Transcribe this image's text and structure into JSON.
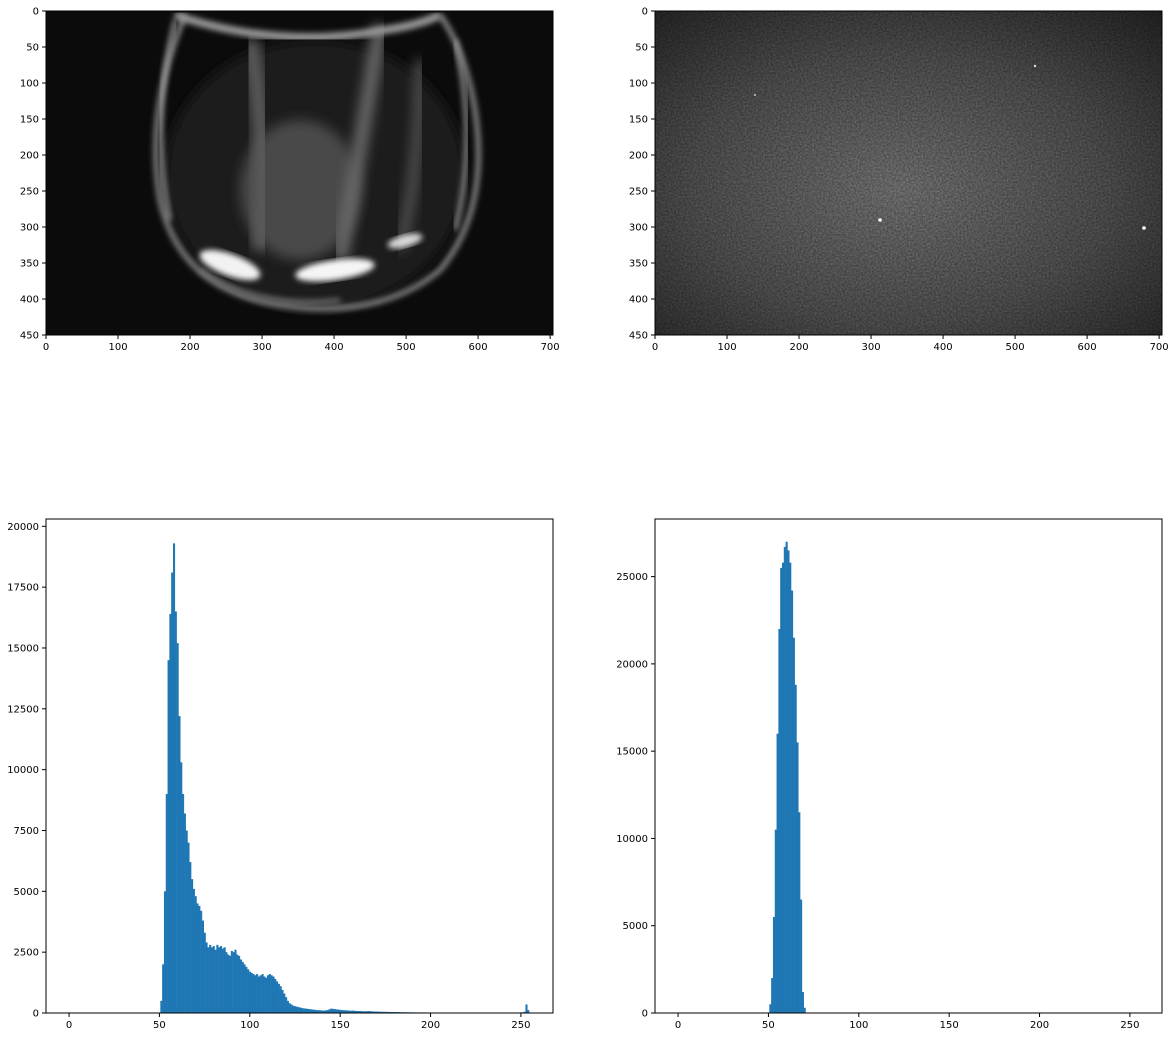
{
  "figure": {
    "background": "#ffffff",
    "bar_color": "#1f77b4"
  },
  "chart_data": [
    {
      "type": "image",
      "panel": "top-left",
      "content": "grayscale photo of a glass vessel on dark background",
      "xlim": [
        0,
        704
      ],
      "ylim": [
        450,
        0
      ],
      "xticks": [
        0,
        100,
        200,
        300,
        400,
        500,
        600,
        700
      ],
      "yticks": [
        0,
        50,
        100,
        150,
        200,
        250,
        300,
        350,
        400,
        450
      ]
    },
    {
      "type": "image",
      "panel": "top-right",
      "content": "grayscale noisy speckle texture, brighter in the center",
      "xlim": [
        0,
        704
      ],
      "ylim": [
        450,
        0
      ],
      "xticks": [
        0,
        100,
        200,
        300,
        400,
        500,
        600,
        700
      ],
      "yticks": [
        0,
        50,
        100,
        150,
        200,
        250,
        300,
        350,
        400,
        450
      ]
    },
    {
      "type": "bar",
      "panel": "bottom-left",
      "histogram": true,
      "xlim": [
        -12.75,
        267.75
      ],
      "ylim": [
        0,
        20300
      ],
      "xticks": [
        0,
        50,
        100,
        150,
        200,
        250
      ],
      "yticks": [
        0,
        2500,
        5000,
        7500,
        10000,
        12500,
        15000,
        17500,
        20000
      ],
      "bins": [
        [
          51,
          500
        ],
        [
          52,
          2000
        ],
        [
          53,
          5000
        ],
        [
          54,
          9000
        ],
        [
          55,
          14500
        ],
        [
          56,
          16400
        ],
        [
          57,
          18100
        ],
        [
          58,
          19300
        ],
        [
          59,
          16500
        ],
        [
          60,
          15200
        ],
        [
          61,
          12200
        ],
        [
          62,
          10300
        ],
        [
          63,
          9000
        ],
        [
          64,
          8200
        ],
        [
          65,
          7500
        ],
        [
          66,
          7000
        ],
        [
          67,
          6200
        ],
        [
          68,
          5500
        ],
        [
          69,
          5100
        ],
        [
          70,
          4800
        ],
        [
          71,
          4500
        ],
        [
          72,
          4400
        ],
        [
          73,
          4200
        ],
        [
          74,
          3800
        ],
        [
          75,
          3300
        ],
        [
          76,
          2900
        ],
        [
          77,
          2700
        ],
        [
          78,
          2800
        ],
        [
          79,
          2700
        ],
        [
          80,
          2750
        ],
        [
          81,
          2600
        ],
        [
          82,
          2800
        ],
        [
          83,
          2700
        ],
        [
          84,
          2750
        ],
        [
          85,
          2650
        ],
        [
          86,
          2700
        ],
        [
          87,
          2500
        ],
        [
          88,
          2400
        ],
        [
          89,
          2350
        ],
        [
          90,
          2550
        ],
        [
          91,
          2500
        ],
        [
          92,
          2600
        ],
        [
          93,
          2400
        ],
        [
          94,
          2350
        ],
        [
          95,
          2200
        ],
        [
          96,
          2100
        ],
        [
          97,
          2000
        ],
        [
          98,
          1900
        ],
        [
          99,
          1800
        ],
        [
          100,
          1700
        ],
        [
          101,
          1650
        ],
        [
          102,
          1600
        ],
        [
          103,
          1550
        ],
        [
          104,
          1600
        ],
        [
          105,
          1500
        ],
        [
          106,
          1550
        ],
        [
          107,
          1600
        ],
        [
          108,
          1500
        ],
        [
          109,
          1450
        ],
        [
          110,
          1550
        ],
        [
          111,
          1600
        ],
        [
          112,
          1550
        ],
        [
          113,
          1500
        ],
        [
          114,
          1400
        ],
        [
          115,
          1300
        ],
        [
          116,
          1200
        ],
        [
          117,
          1100
        ],
        [
          118,
          950
        ],
        [
          119,
          800
        ],
        [
          120,
          650
        ],
        [
          121,
          500
        ],
        [
          122,
          400
        ],
        [
          123,
          350
        ],
        [
          124,
          300
        ],
        [
          125,
          280
        ],
        [
          126,
          260
        ],
        [
          127,
          240
        ],
        [
          128,
          220
        ],
        [
          129,
          200
        ],
        [
          130,
          190
        ],
        [
          131,
          180
        ],
        [
          132,
          170
        ],
        [
          133,
          160
        ],
        [
          134,
          150
        ],
        [
          135,
          140
        ],
        [
          136,
          130
        ],
        [
          137,
          120
        ],
        [
          138,
          115
        ],
        [
          139,
          110
        ],
        [
          140,
          105
        ],
        [
          141,
          100
        ],
        [
          142,
          110
        ],
        [
          143,
          120
        ],
        [
          144,
          150
        ],
        [
          145,
          180
        ],
        [
          146,
          170
        ],
        [
          147,
          160
        ],
        [
          148,
          150
        ],
        [
          149,
          140
        ],
        [
          150,
          130
        ],
        [
          151,
          120
        ],
        [
          152,
          115
        ],
        [
          153,
          110
        ],
        [
          154,
          105
        ],
        [
          155,
          100
        ],
        [
          156,
          95
        ],
        [
          157,
          100
        ],
        [
          158,
          90
        ],
        [
          159,
          85
        ],
        [
          160,
          80
        ],
        [
          161,
          80
        ],
        [
          162,
          75
        ],
        [
          163,
          70
        ],
        [
          164,
          70
        ],
        [
          165,
          75
        ],
        [
          166,
          80
        ],
        [
          167,
          70
        ],
        [
          168,
          65
        ],
        [
          169,
          60
        ],
        [
          170,
          60
        ],
        [
          171,
          55
        ],
        [
          172,
          55
        ],
        [
          173,
          50
        ],
        [
          174,
          50
        ],
        [
          175,
          48
        ],
        [
          176,
          46
        ],
        [
          177,
          44
        ],
        [
          178,
          42
        ],
        [
          179,
          40
        ],
        [
          180,
          40
        ],
        [
          181,
          38
        ],
        [
          182,
          36
        ],
        [
          183,
          34
        ],
        [
          184,
          32
        ],
        [
          185,
          30
        ],
        [
          186,
          30
        ],
        [
          187,
          28
        ],
        [
          188,
          28
        ],
        [
          189,
          26
        ],
        [
          190,
          26
        ],
        [
          191,
          25
        ],
        [
          192,
          25
        ],
        [
          193,
          24
        ],
        [
          194,
          24
        ],
        [
          195,
          23
        ],
        [
          196,
          23
        ],
        [
          197,
          22
        ],
        [
          198,
          22
        ],
        [
          199,
          21
        ],
        [
          200,
          21
        ],
        [
          201,
          20
        ],
        [
          202,
          20
        ],
        [
          203,
          20
        ],
        [
          204,
          19
        ],
        [
          205,
          19
        ],
        [
          206,
          18
        ],
        [
          207,
          18
        ],
        [
          208,
          18
        ],
        [
          209,
          17
        ],
        [
          210,
          17
        ],
        [
          211,
          17
        ],
        [
          212,
          16
        ],
        [
          213,
          16
        ],
        [
          214,
          16
        ],
        [
          215,
          15
        ],
        [
          216,
          15
        ],
        [
          217,
          15
        ],
        [
          218,
          15
        ],
        [
          219,
          14
        ],
        [
          220,
          14
        ],
        [
          221,
          14
        ],
        [
          222,
          14
        ],
        [
          223,
          13
        ],
        [
          224,
          13
        ],
        [
          225,
          13
        ],
        [
          226,
          13
        ],
        [
          227,
          12
        ],
        [
          228,
          12
        ],
        [
          229,
          12
        ],
        [
          230,
          12
        ],
        [
          231,
          12
        ],
        [
          232,
          11
        ],
        [
          233,
          11
        ],
        [
          234,
          11
        ],
        [
          235,
          11
        ],
        [
          236,
          11
        ],
        [
          237,
          10
        ],
        [
          238,
          10
        ],
        [
          239,
          10
        ],
        [
          240,
          10
        ],
        [
          241,
          10
        ],
        [
          242,
          10
        ],
        [
          243,
          10
        ],
        [
          244,
          10
        ],
        [
          245,
          12
        ],
        [
          246,
          14
        ],
        [
          247,
          16
        ],
        [
          248,
          18
        ],
        [
          249,
          20
        ],
        [
          250,
          25
        ],
        [
          251,
          30
        ],
        [
          252,
          50
        ],
        [
          253,
          350
        ],
        [
          254,
          120
        ]
      ]
    },
    {
      "type": "bar",
      "panel": "bottom-right",
      "histogram": true,
      "xlim": [
        -12.75,
        267.75
      ],
      "ylim": [
        0,
        28300
      ],
      "xticks": [
        0,
        50,
        100,
        150,
        200,
        250
      ],
      "yticks": [
        0,
        5000,
        10000,
        15000,
        20000,
        25000
      ],
      "bins": [
        [
          51,
          500
        ],
        [
          52,
          2000
        ],
        [
          53,
          5500
        ],
        [
          54,
          10500
        ],
        [
          55,
          16000
        ],
        [
          56,
          22000
        ],
        [
          57,
          25500
        ],
        [
          58,
          25800
        ],
        [
          59,
          26700
        ],
        [
          60,
          27000
        ],
        [
          61,
          26500
        ],
        [
          62,
          25800
        ],
        [
          63,
          24200
        ],
        [
          64,
          21500
        ],
        [
          65,
          18800
        ],
        [
          66,
          15500
        ],
        [
          67,
          11500
        ],
        [
          68,
          6500
        ],
        [
          69,
          1200
        ],
        [
          70,
          300
        ]
      ]
    }
  ]
}
